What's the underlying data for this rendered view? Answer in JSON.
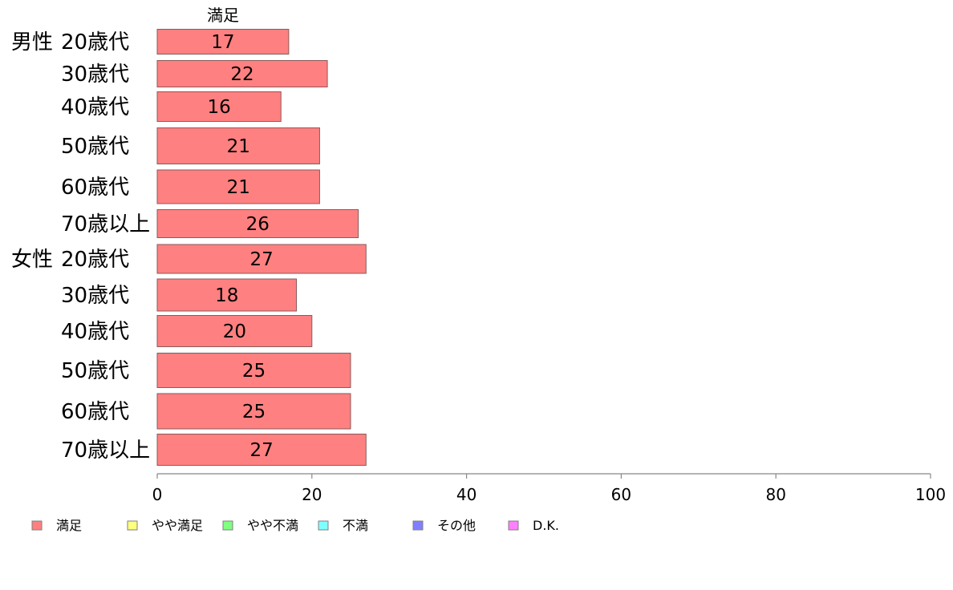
{
  "chart_data": {
    "type": "bar",
    "orientation": "horizontal",
    "stacked": true,
    "segment_label": "満足",
    "groups": [
      {
        "name": "男性",
        "rows": [
          {
            "label": "20歳代",
            "value": 17
          },
          {
            "label": "30歳代",
            "value": 22
          },
          {
            "label": "40歳代",
            "value": 16
          },
          {
            "label": "50歳代",
            "value": 21
          },
          {
            "label": "60歳代",
            "value": 21
          },
          {
            "label": "70歳以上",
            "value": 26
          }
        ]
      },
      {
        "name": "女性",
        "rows": [
          {
            "label": "20歳代",
            "value": 27
          },
          {
            "label": "30歳代",
            "value": 18
          },
          {
            "label": "40歳代",
            "value": 20
          },
          {
            "label": "50歳代",
            "value": 25
          },
          {
            "label": "60歳代",
            "value": 25
          },
          {
            "label": "70歳以上",
            "value": 27
          }
        ]
      }
    ],
    "series": [
      {
        "name": "満足",
        "color": "#ff8080"
      },
      {
        "name": "やや満足",
        "color": "#ffff80"
      },
      {
        "name": "やや不満",
        "color": "#80ff80"
      },
      {
        "name": "不満",
        "color": "#80ffff"
      },
      {
        "name": "その他",
        "color": "#8080ff"
      },
      {
        "name": "D.K.",
        "color": "#ff80ff"
      }
    ],
    "xlim": [
      0,
      100
    ],
    "xticks": [
      0,
      20,
      40,
      60,
      80,
      100
    ],
    "grid": false,
    "legend_position": "bottom-left"
  }
}
